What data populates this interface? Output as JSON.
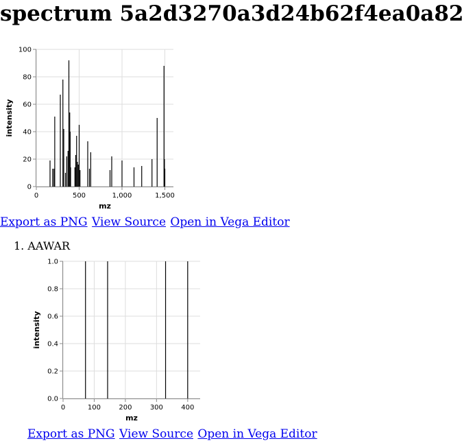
{
  "page": {
    "title": "spectrum 5a2d3270a3d24b62f4ea0a82"
  },
  "actions": {
    "export_png": "Export as PNG",
    "view_source": "View Source",
    "open_vega": "Open in Vega Editor"
  },
  "peptides": [
    {
      "number": "1.",
      "label": "AAWAR"
    }
  ],
  "colors": {
    "bar": "#000000",
    "grid": "#dddddd",
    "link": "#0000ee"
  },
  "chart_data": [
    {
      "type": "bar",
      "xlabel": "mz",
      "ylabel": "intensity",
      "xlim": [
        0,
        1600
      ],
      "ylim": [
        0,
        100
      ],
      "xticks": [
        0,
        500,
        1000,
        1500
      ],
      "xtick_labels": [
        "0",
        "500",
        "1,000",
        "1,500"
      ],
      "yticks": [
        0,
        20,
        40,
        60,
        80,
        100
      ],
      "ytick_labels": [
        "0",
        "20",
        "40",
        "60",
        "80",
        "100"
      ],
      "grid": true,
      "x": [
        160,
        190,
        205,
        215,
        280,
        310,
        320,
        340,
        355,
        370,
        380,
        390,
        395,
        400,
        450,
        460,
        470,
        480,
        490,
        500,
        510,
        600,
        620,
        635,
        860,
        880,
        1000,
        1140,
        1230,
        1350,
        1410,
        1490,
        1495,
        1500
      ],
      "y": [
        19,
        13,
        13,
        51,
        67,
        78,
        42,
        10,
        22,
        26,
        92,
        54,
        40,
        14,
        14,
        23,
        37,
        18,
        16,
        45,
        12,
        33,
        13,
        25,
        12,
        22,
        19,
        14,
        15,
        20,
        50,
        88,
        20,
        13
      ]
    },
    {
      "type": "bar",
      "xlabel": "mz",
      "ylabel": "intensity",
      "xlim": [
        0,
        440
      ],
      "ylim": [
        0,
        1
      ],
      "xticks": [
        0,
        100,
        200,
        300,
        400
      ],
      "xtick_labels": [
        "0",
        "100",
        "200",
        "300",
        "400"
      ],
      "yticks": [
        0,
        0.2,
        0.4,
        0.6,
        0.8,
        1.0
      ],
      "ytick_labels": [
        "0.0",
        "0.2",
        "0.4",
        "0.6",
        "0.8",
        "1.0"
      ],
      "grid": true,
      "x": [
        72,
        143,
        329,
        400
      ],
      "y": [
        1,
        1,
        1,
        1
      ]
    }
  ]
}
